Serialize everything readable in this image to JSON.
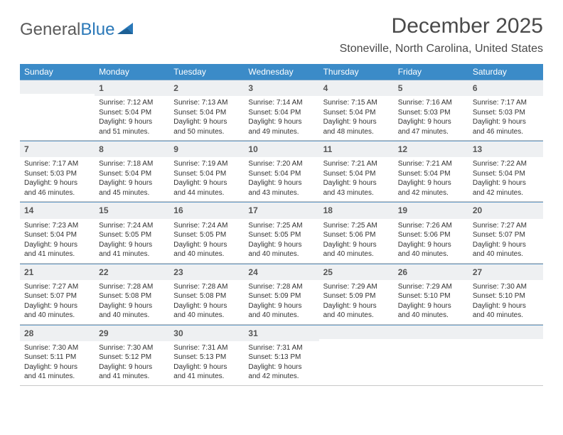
{
  "logo": {
    "text_left": "General",
    "text_right": "Blue"
  },
  "title": "December 2025",
  "location": "Stoneville, North Carolina, United States",
  "colors": {
    "header_bg": "#3b8bc8",
    "header_text": "#ffffff",
    "daynum_bg": "#eef0f2",
    "rule": "#6a9ec8",
    "text": "#333333"
  },
  "day_headers": [
    "Sunday",
    "Monday",
    "Tuesday",
    "Wednesday",
    "Thursday",
    "Friday",
    "Saturday"
  ],
  "weeks": [
    [
      {
        "n": "",
        "lines": []
      },
      {
        "n": "1",
        "lines": [
          "Sunrise: 7:12 AM",
          "Sunset: 5:04 PM",
          "Daylight: 9 hours and 51 minutes."
        ]
      },
      {
        "n": "2",
        "lines": [
          "Sunrise: 7:13 AM",
          "Sunset: 5:04 PM",
          "Daylight: 9 hours and 50 minutes."
        ]
      },
      {
        "n": "3",
        "lines": [
          "Sunrise: 7:14 AM",
          "Sunset: 5:04 PM",
          "Daylight: 9 hours and 49 minutes."
        ]
      },
      {
        "n": "4",
        "lines": [
          "Sunrise: 7:15 AM",
          "Sunset: 5:04 PM",
          "Daylight: 9 hours and 48 minutes."
        ]
      },
      {
        "n": "5",
        "lines": [
          "Sunrise: 7:16 AM",
          "Sunset: 5:03 PM",
          "Daylight: 9 hours and 47 minutes."
        ]
      },
      {
        "n": "6",
        "lines": [
          "Sunrise: 7:17 AM",
          "Sunset: 5:03 PM",
          "Daylight: 9 hours and 46 minutes."
        ]
      }
    ],
    [
      {
        "n": "7",
        "lines": [
          "Sunrise: 7:17 AM",
          "Sunset: 5:03 PM",
          "Daylight: 9 hours and 46 minutes."
        ]
      },
      {
        "n": "8",
        "lines": [
          "Sunrise: 7:18 AM",
          "Sunset: 5:04 PM",
          "Daylight: 9 hours and 45 minutes."
        ]
      },
      {
        "n": "9",
        "lines": [
          "Sunrise: 7:19 AM",
          "Sunset: 5:04 PM",
          "Daylight: 9 hours and 44 minutes."
        ]
      },
      {
        "n": "10",
        "lines": [
          "Sunrise: 7:20 AM",
          "Sunset: 5:04 PM",
          "Daylight: 9 hours and 43 minutes."
        ]
      },
      {
        "n": "11",
        "lines": [
          "Sunrise: 7:21 AM",
          "Sunset: 5:04 PM",
          "Daylight: 9 hours and 43 minutes."
        ]
      },
      {
        "n": "12",
        "lines": [
          "Sunrise: 7:21 AM",
          "Sunset: 5:04 PM",
          "Daylight: 9 hours and 42 minutes."
        ]
      },
      {
        "n": "13",
        "lines": [
          "Sunrise: 7:22 AM",
          "Sunset: 5:04 PM",
          "Daylight: 9 hours and 42 minutes."
        ]
      }
    ],
    [
      {
        "n": "14",
        "lines": [
          "Sunrise: 7:23 AM",
          "Sunset: 5:04 PM",
          "Daylight: 9 hours and 41 minutes."
        ]
      },
      {
        "n": "15",
        "lines": [
          "Sunrise: 7:24 AM",
          "Sunset: 5:05 PM",
          "Daylight: 9 hours and 41 minutes."
        ]
      },
      {
        "n": "16",
        "lines": [
          "Sunrise: 7:24 AM",
          "Sunset: 5:05 PM",
          "Daylight: 9 hours and 40 minutes."
        ]
      },
      {
        "n": "17",
        "lines": [
          "Sunrise: 7:25 AM",
          "Sunset: 5:05 PM",
          "Daylight: 9 hours and 40 minutes."
        ]
      },
      {
        "n": "18",
        "lines": [
          "Sunrise: 7:25 AM",
          "Sunset: 5:06 PM",
          "Daylight: 9 hours and 40 minutes."
        ]
      },
      {
        "n": "19",
        "lines": [
          "Sunrise: 7:26 AM",
          "Sunset: 5:06 PM",
          "Daylight: 9 hours and 40 minutes."
        ]
      },
      {
        "n": "20",
        "lines": [
          "Sunrise: 7:27 AM",
          "Sunset: 5:07 PM",
          "Daylight: 9 hours and 40 minutes."
        ]
      }
    ],
    [
      {
        "n": "21",
        "lines": [
          "Sunrise: 7:27 AM",
          "Sunset: 5:07 PM",
          "Daylight: 9 hours and 40 minutes."
        ]
      },
      {
        "n": "22",
        "lines": [
          "Sunrise: 7:28 AM",
          "Sunset: 5:08 PM",
          "Daylight: 9 hours and 40 minutes."
        ]
      },
      {
        "n": "23",
        "lines": [
          "Sunrise: 7:28 AM",
          "Sunset: 5:08 PM",
          "Daylight: 9 hours and 40 minutes."
        ]
      },
      {
        "n": "24",
        "lines": [
          "Sunrise: 7:28 AM",
          "Sunset: 5:09 PM",
          "Daylight: 9 hours and 40 minutes."
        ]
      },
      {
        "n": "25",
        "lines": [
          "Sunrise: 7:29 AM",
          "Sunset: 5:09 PM",
          "Daylight: 9 hours and 40 minutes."
        ]
      },
      {
        "n": "26",
        "lines": [
          "Sunrise: 7:29 AM",
          "Sunset: 5:10 PM",
          "Daylight: 9 hours and 40 minutes."
        ]
      },
      {
        "n": "27",
        "lines": [
          "Sunrise: 7:30 AM",
          "Sunset: 5:10 PM",
          "Daylight: 9 hours and 40 minutes."
        ]
      }
    ],
    [
      {
        "n": "28",
        "lines": [
          "Sunrise: 7:30 AM",
          "Sunset: 5:11 PM",
          "Daylight: 9 hours and 41 minutes."
        ]
      },
      {
        "n": "29",
        "lines": [
          "Sunrise: 7:30 AM",
          "Sunset: 5:12 PM",
          "Daylight: 9 hours and 41 minutes."
        ]
      },
      {
        "n": "30",
        "lines": [
          "Sunrise: 7:31 AM",
          "Sunset: 5:13 PM",
          "Daylight: 9 hours and 41 minutes."
        ]
      },
      {
        "n": "31",
        "lines": [
          "Sunrise: 7:31 AM",
          "Sunset: 5:13 PM",
          "Daylight: 9 hours and 42 minutes."
        ]
      },
      {
        "n": "",
        "lines": []
      },
      {
        "n": "",
        "lines": []
      },
      {
        "n": "",
        "lines": []
      }
    ]
  ]
}
